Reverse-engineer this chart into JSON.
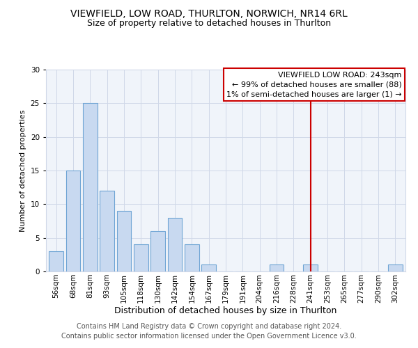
{
  "title": "VIEWFIELD, LOW ROAD, THURLTON, NORWICH, NR14 6RL",
  "subtitle": "Size of property relative to detached houses in Thurlton",
  "xlabel": "Distribution of detached houses by size in Thurlton",
  "ylabel": "Number of detached properties",
  "bin_labels": [
    "56sqm",
    "68sqm",
    "81sqm",
    "93sqm",
    "105sqm",
    "118sqm",
    "130sqm",
    "142sqm",
    "154sqm",
    "167sqm",
    "179sqm",
    "191sqm",
    "204sqm",
    "216sqm",
    "228sqm",
    "241sqm",
    "253sqm",
    "265sqm",
    "277sqm",
    "290sqm",
    "302sqm"
  ],
  "bar_values": [
    3,
    15,
    25,
    12,
    9,
    4,
    6,
    8,
    4,
    1,
    0,
    0,
    0,
    1,
    0,
    1,
    0,
    0,
    0,
    0,
    1
  ],
  "bar_color": "#c8d9f0",
  "bar_edge_color": "#6ea4d4",
  "ylim": [
    0,
    30
  ],
  "yticks": [
    0,
    5,
    10,
    15,
    20,
    25,
    30
  ],
  "vline_x_index": 15,
  "vline_color": "#cc0000",
  "annotation_title": "VIEWFIELD LOW ROAD: 243sqm",
  "annotation_line1": "← 99% of detached houses are smaller (88)",
  "annotation_line2": "1% of semi-detached houses are larger (1) →",
  "annotation_box_color": "#cc0000",
  "footer_line1": "Contains HM Land Registry data © Crown copyright and database right 2024.",
  "footer_line2": "Contains public sector information licensed under the Open Government Licence v3.0.",
  "title_fontsize": 10,
  "subtitle_fontsize": 9,
  "xlabel_fontsize": 9,
  "ylabel_fontsize": 8,
  "tick_fontsize": 7.5,
  "annotation_fontsize": 8,
  "footer_fontsize": 7
}
